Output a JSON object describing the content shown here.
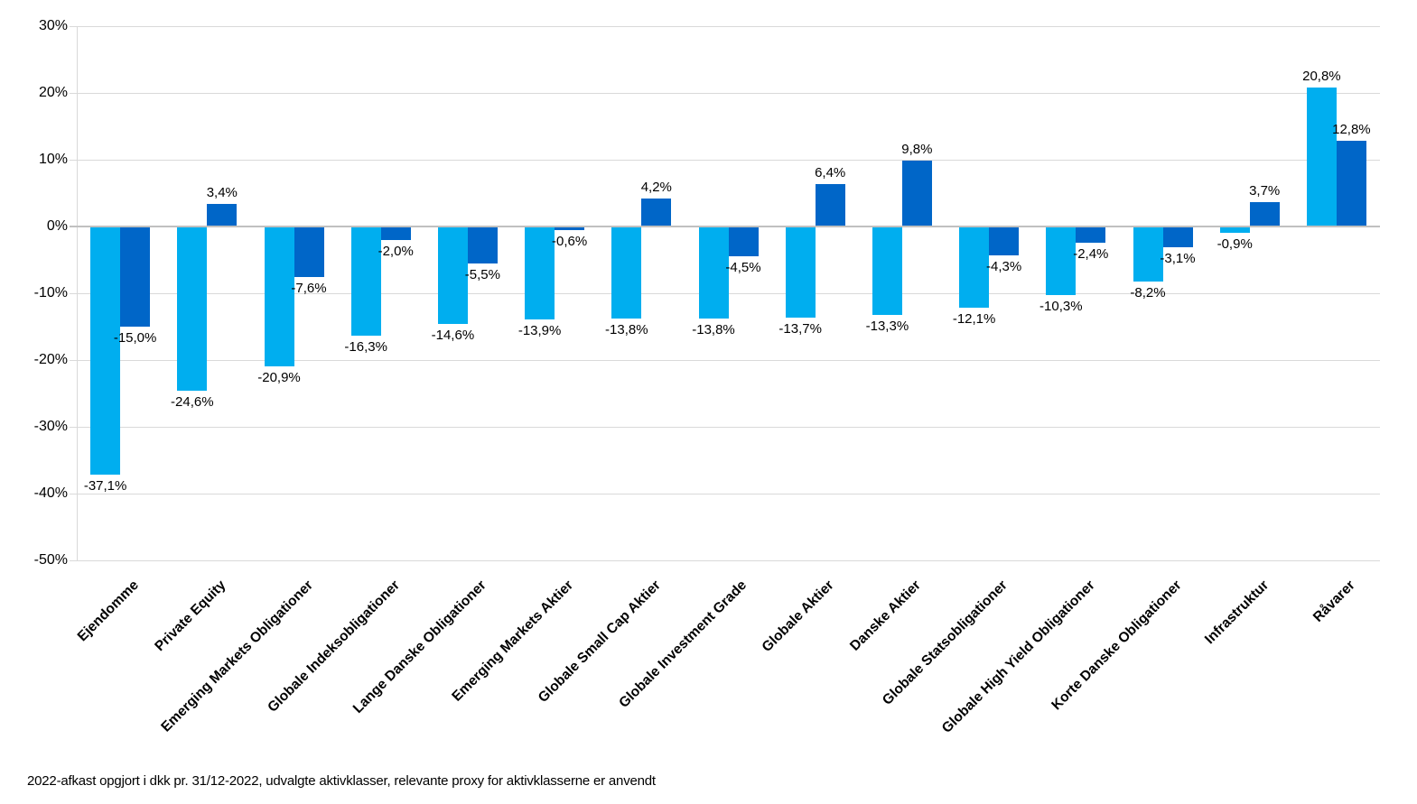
{
  "chart_data": {
    "type": "bar",
    "title": "",
    "categories": [
      "Ejendomme",
      "Private Equity",
      "Emerging Markets Obligationer",
      "Globale Indeksobligationer",
      "Lange Danske Obligationer",
      "Emerging Markets Aktier",
      "Globale Small Cap Aktier",
      "Globale Investment Grade",
      "Globale Aktier",
      "Danske Aktier",
      "Globale Statsobligationer",
      "Globale High Yield Obligationer",
      "Korte Danske Obligationer",
      "Infrastruktur",
      "Råvarer"
    ],
    "series": [
      {
        "id": "series1",
        "color": "#00AEEF",
        "values": [
          -37.1,
          -24.6,
          -20.9,
          -16.3,
          -14.6,
          -13.9,
          -13.8,
          -13.8,
          -13.7,
          -13.3,
          -12.1,
          -10.3,
          -8.2,
          -0.9,
          20.8
        ],
        "labels": [
          "-37,1%",
          "-24,6%",
          "-20,9%",
          "-16,3%",
          "-14,6%",
          "-13,9%",
          "-13,8%",
          "-13,8%",
          "-13,7%",
          "-13,3%",
          "-12,1%",
          "-10,3%",
          "-8,2%",
          "-0,9%",
          "20,8%"
        ]
      },
      {
        "id": "series2",
        "color": "#0066C8",
        "values": [
          -15.0,
          3.4,
          -7.6,
          -2.0,
          -5.5,
          -0.6,
          4.2,
          -4.5,
          6.4,
          9.8,
          -4.3,
          -2.4,
          -3.1,
          3.7,
          12.8
        ],
        "labels": [
          "-15,0%",
          "3,4%",
          "-7,6%",
          "-2,0%",
          "-5,5%",
          "-0,6%",
          "4,2%",
          "-4,5%",
          "6,4%",
          "9,8%",
          "-4,3%",
          "-2,4%",
          "-3,1%",
          "3,7%",
          "12,8%"
        ]
      }
    ],
    "ylim": [
      -50,
      30
    ],
    "yticks": [
      30,
      20,
      10,
      0,
      -10,
      -20,
      -30,
      -40,
      -50
    ],
    "ytick_labels": [
      "30%",
      "20%",
      "10%",
      "0%",
      "-10%",
      "-20%",
      "-30%",
      "-40%",
      "-50%"
    ],
    "grid": true,
    "legend": "none",
    "axis_colors": {
      "gridline": "#D9D9D9",
      "zero_line": "#C0C0C0",
      "axis_line": "#D9D9D9",
      "label": "#000000"
    },
    "footnote": "2022-afkast opgjort i dkk pr. 31/12-2022, udvalgte  aktivklasser,  relevante  proxy for aktivklasserne  er anvendt"
  }
}
